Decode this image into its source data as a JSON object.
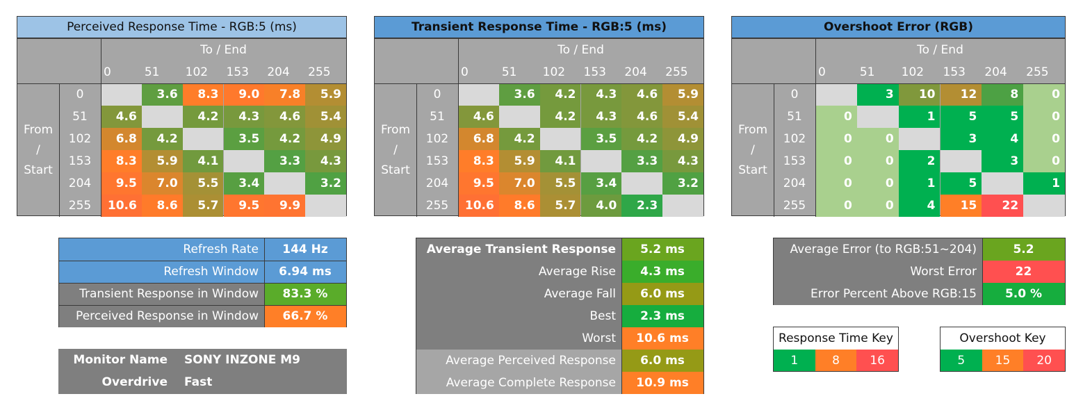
{
  "colors": {
    "empty": "#d9d9d9",
    "header_bg": "#a6a6a6",
    "panel_dark": "#7f7f7f",
    "blue_light": "#9dc3e6",
    "blue_mid": "#5b9bd5",
    "green": "#00b050",
    "orange": "#ff7f27",
    "red": "#ff5050",
    "light_green": "#a9d08e"
  },
  "headers": {
    "to_end": "To / End",
    "from_start": [
      "From",
      "/",
      "Start"
    ]
  },
  "chart_data": [
    {
      "type": "heatmap",
      "title": "Perceived Response Time - RGB:5 (ms)",
      "columns": [
        "0",
        "51",
        "102",
        "153",
        "204",
        "255"
      ],
      "rows": [
        "0",
        "51",
        "102",
        "153",
        "204",
        "255"
      ],
      "values": [
        [
          null,
          "3.6",
          "8.3",
          "9.0",
          "7.8",
          "5.9"
        ],
        [
          "4.6",
          null,
          "4.2",
          "4.3",
          "4.6",
          "5.4"
        ],
        [
          "6.8",
          "4.2",
          null,
          "3.5",
          "4.2",
          "4.9"
        ],
        [
          "8.3",
          "5.9",
          "4.1",
          null,
          "3.3",
          "4.3"
        ],
        [
          "9.5",
          "7.0",
          "5.5",
          "3.4",
          null,
          "3.2"
        ],
        [
          "10.6",
          "8.6",
          "5.7",
          "9.5",
          "9.9",
          null
        ]
      ]
    },
    {
      "type": "heatmap",
      "title": "Transient Response Time - RGB:5 (ms)",
      "columns": [
        "0",
        "51",
        "102",
        "153",
        "204",
        "255"
      ],
      "rows": [
        "0",
        "51",
        "102",
        "153",
        "204",
        "255"
      ],
      "values": [
        [
          null,
          "3.6",
          "4.2",
          "4.3",
          "4.6",
          "5.9"
        ],
        [
          "4.6",
          null,
          "4.2",
          "4.3",
          "4.6",
          "5.4"
        ],
        [
          "6.8",
          "4.2",
          null,
          "3.5",
          "4.2",
          "4.9"
        ],
        [
          "8.3",
          "5.9",
          "4.1",
          null,
          "3.3",
          "4.3"
        ],
        [
          "9.5",
          "7.0",
          "5.5",
          "3.4",
          null,
          "3.2"
        ],
        [
          "10.6",
          "8.6",
          "5.7",
          "4.0",
          "2.3",
          null
        ]
      ]
    },
    {
      "type": "heatmap",
      "title": "Overshoot Error (RGB)",
      "columns": [
        "0",
        "51",
        "102",
        "153",
        "204",
        "255"
      ],
      "rows": [
        "0",
        "51",
        "102",
        "153",
        "204",
        "255"
      ],
      "values": [
        [
          null,
          "3",
          "10",
          "12",
          "8",
          "0"
        ],
        [
          "0",
          null,
          "1",
          "5",
          "5",
          "0"
        ],
        [
          "0",
          "0",
          null,
          "3",
          "4",
          "0"
        ],
        [
          "0",
          "0",
          "2",
          null,
          "3",
          "0"
        ],
        [
          "0",
          "0",
          "1",
          "5",
          null,
          "1"
        ],
        [
          "0",
          "0",
          "4",
          "15",
          "22",
          null
        ]
      ]
    }
  ],
  "refresh": [
    {
      "label": "Refresh Rate",
      "value": "144 Hz",
      "label_bg": "#5b9bd5",
      "value_bg": "#5b9bd5"
    },
    {
      "label": "Refresh Window",
      "value": "6.94 ms",
      "label_bg": "#5b9bd5",
      "value_bg": "#5b9bd5"
    },
    {
      "label": "Transient Response in Window",
      "value": "83.3 %",
      "label_bg": "#7f7f7f",
      "value_bg": "#5aac2a"
    },
    {
      "label": "Perceived Response in Window",
      "value": "66.7 %",
      "label_bg": "#7f7f7f",
      "value_bg": "#ff7f27"
    }
  ],
  "monitor": [
    {
      "label": "Monitor Name",
      "value": "SONY INZONE M9"
    },
    {
      "label": "Overdrive",
      "value": "Fast"
    }
  ],
  "averages": [
    {
      "label": "Average Transient Response",
      "value": "5.2 ms",
      "bold": true,
      "label_bg": "#7f7f7f",
      "value_bg": "#6aa51f"
    },
    {
      "label": "Average Rise",
      "value": "4.3 ms",
      "bold": false,
      "label_bg": "#7f7f7f",
      "value_bg": "#3aad2b"
    },
    {
      "label": "Average Fall",
      "value": "6.0 ms",
      "bold": false,
      "label_bg": "#7f7f7f",
      "value_bg": "#959a16"
    },
    {
      "label": "Best",
      "value": "2.3 ms",
      "bold": false,
      "label_bg": "#7f7f7f",
      "value_bg": "#16ad3e"
    },
    {
      "label": "Worst",
      "value": "10.6 ms",
      "bold": false,
      "label_bg": "#7f7f7f",
      "value_bg": "#ff7f27"
    },
    {
      "label": "Average Perceived Response",
      "value": "6.0 ms",
      "bold": false,
      "label_bg": "#a6a6a6",
      "value_bg": "#959a16"
    },
    {
      "label": "Average Complete Response",
      "value": "10.9 ms",
      "bold": false,
      "label_bg": "#a6a6a6",
      "value_bg": "#ff7f27"
    }
  ],
  "errors": [
    {
      "label": "Average Error (to RGB:51~204)",
      "value": "5.2",
      "value_bg": "#6aa51f"
    },
    {
      "label": "Worst Error",
      "value": "22",
      "value_bg": "#ff5050"
    },
    {
      "label": "Error Percent Above RGB:15",
      "value": "5.0 %",
      "value_bg": "#16ad3e"
    }
  ],
  "response_key": {
    "title": "Response Time Key",
    "items": [
      {
        "label": "1",
        "color": "#00b050"
      },
      {
        "label": "8",
        "color": "#ff7f27"
      },
      {
        "label": "16",
        "color": "#ff5050"
      }
    ]
  },
  "overshoot_key": {
    "title": "Overshoot Key",
    "items": [
      {
        "label": "5",
        "color": "#00b050"
      },
      {
        "label": "15",
        "color": "#ff7f27"
      },
      {
        "label": "20",
        "color": "#ff5050"
      }
    ]
  }
}
